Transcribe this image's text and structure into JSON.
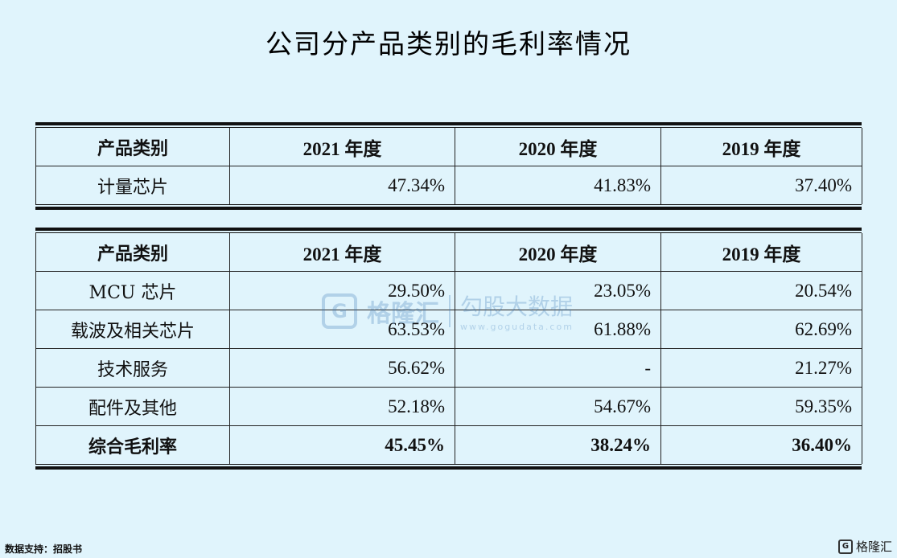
{
  "title": "公司分产品类别的毛利率情况",
  "table1": {
    "headers": [
      "产品类别",
      "2021 年度",
      "2020 年度",
      "2019 年度"
    ],
    "rows": [
      [
        "计量芯片",
        "47.34%",
        "41.83%",
        "37.40%"
      ]
    ]
  },
  "table2": {
    "headers": [
      "产品类别",
      "2021 年度",
      "2020 年度",
      "2019 年度"
    ],
    "rows": [
      [
        "MCU 芯片",
        "29.50%",
        "23.05%",
        "20.54%"
      ],
      [
        "载波及相关芯片",
        "63.53%",
        "61.88%",
        "62.69%"
      ],
      [
        "技术服务",
        "56.62%",
        "-",
        "21.27%"
      ],
      [
        "配件及其他",
        "52.18%",
        "54.67%",
        "59.35%"
      ],
      [
        "综合毛利率",
        "45.45%",
        "38.24%",
        "36.40%"
      ]
    ]
  },
  "watermark": {
    "logo_char": "G",
    "name": "格隆汇",
    "right_text": "勾股大数据",
    "url": "www.gogudata.com"
  },
  "source": "数据支持：招股书",
  "corner_logo": {
    "logo_char": "G",
    "text": "格隆汇"
  }
}
